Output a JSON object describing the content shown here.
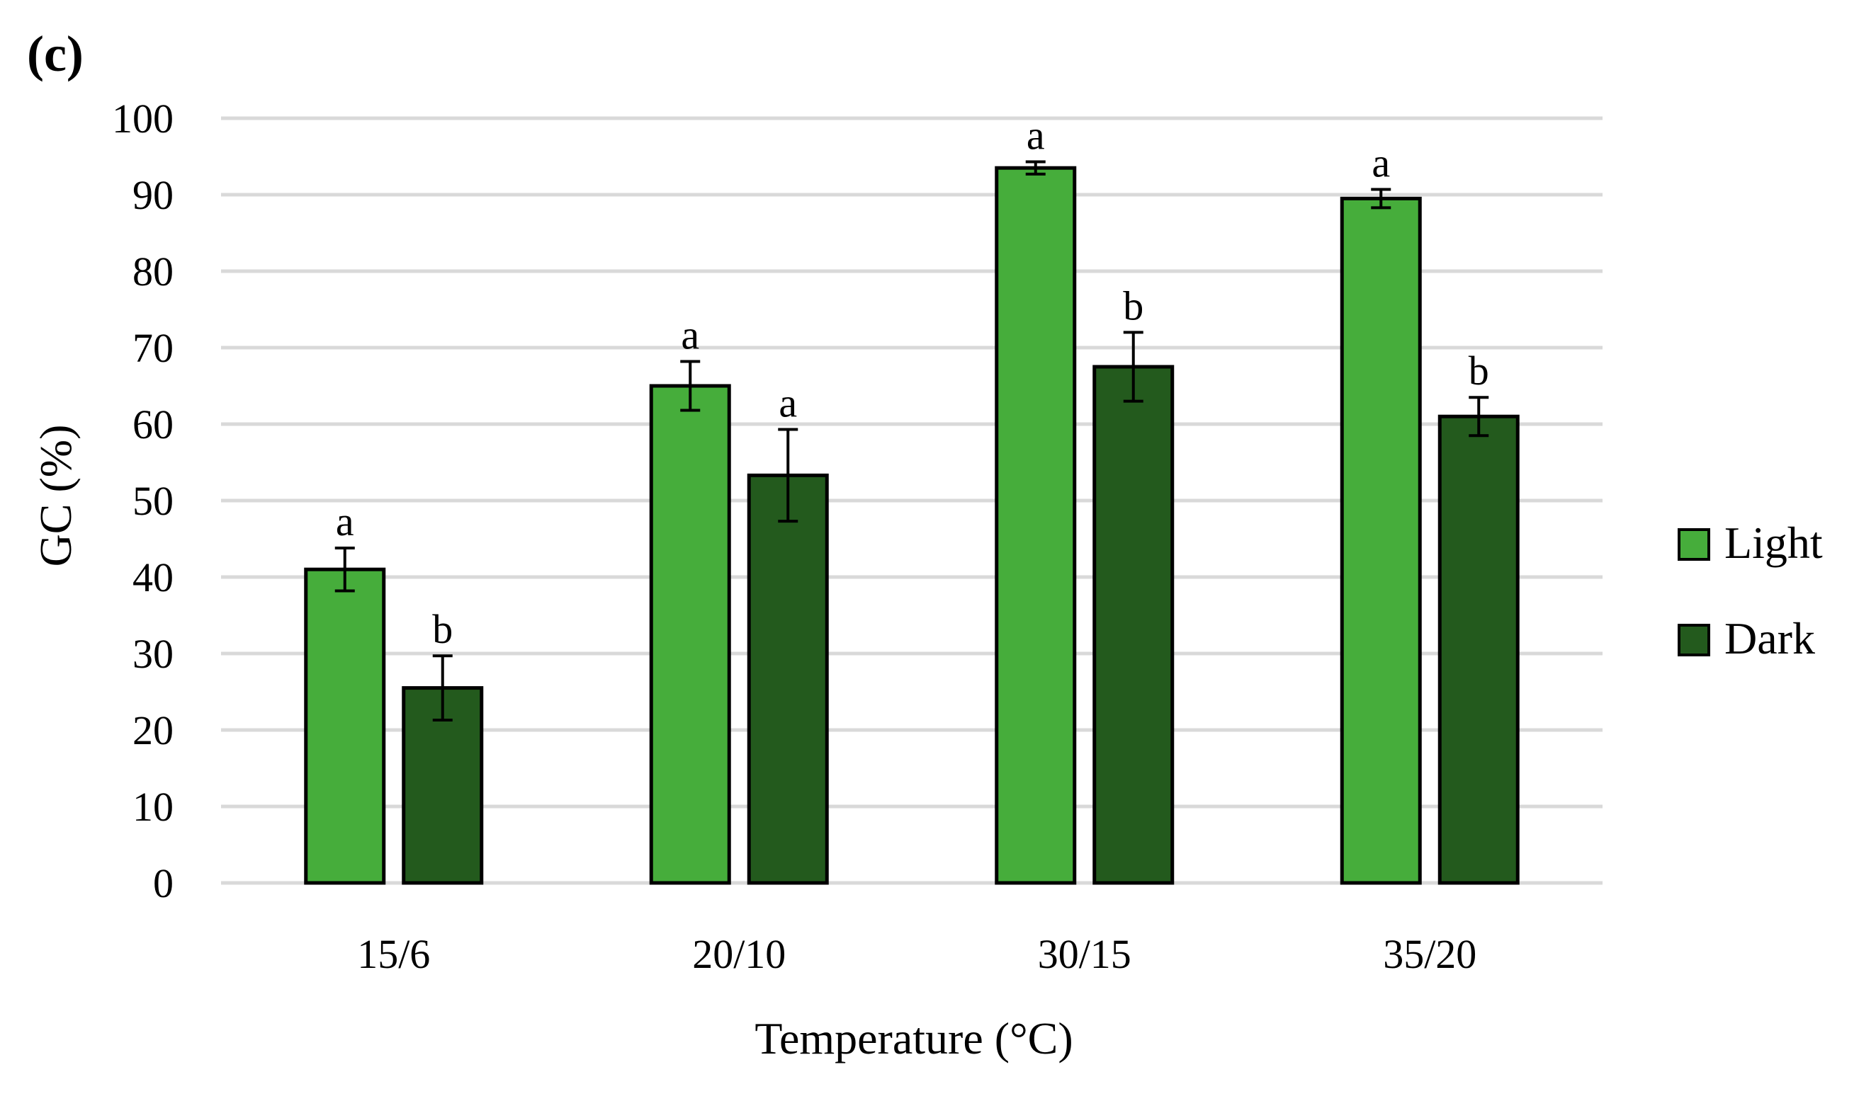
{
  "panel_label": "(c)",
  "chart_data": {
    "type": "bar",
    "title": "",
    "xlabel": "Temperature (°C)",
    "ylabel": "GC (%)",
    "ylim": [
      0,
      100
    ],
    "yticks": [
      0,
      10,
      20,
      30,
      40,
      50,
      60,
      70,
      80,
      90,
      100
    ],
    "grid": true,
    "legend_position": "right",
    "categories": [
      "15/6",
      "20/10",
      "30/15",
      "35/20"
    ],
    "series": [
      {
        "name": "Light",
        "color": "#46ad3b",
        "values": [
          41,
          65,
          93.5,
          89.5
        ],
        "errors": [
          2.8,
          3.2,
          0.8,
          1.2
        ],
        "letters": [
          "a",
          "a",
          "a",
          "a"
        ]
      },
      {
        "name": "Dark",
        "color": "#235a1d",
        "values": [
          25.5,
          53.3,
          67.5,
          61
        ],
        "errors": [
          4.2,
          6,
          4.5,
          2.5
        ],
        "letters": [
          "b",
          "a",
          "b",
          "b"
        ]
      }
    ]
  }
}
